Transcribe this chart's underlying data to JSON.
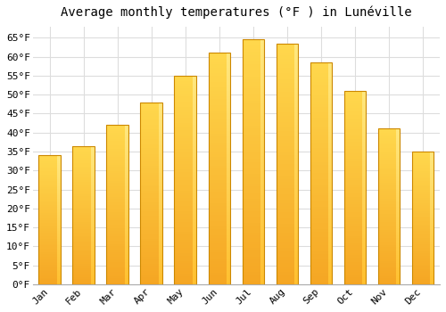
{
  "title": "Average monthly temperatures (°F ) in Lunéville",
  "months": [
    "Jan",
    "Feb",
    "Mar",
    "Apr",
    "May",
    "Jun",
    "Jul",
    "Aug",
    "Sep",
    "Oct",
    "Nov",
    "Dec"
  ],
  "values": [
    34,
    36.5,
    42,
    48,
    55,
    61,
    64.5,
    63.5,
    58.5,
    51,
    41,
    35
  ],
  "bar_color_bottom": "#F5A623",
  "bar_color_top": "#FFD84D",
  "bar_color_highlight": "#FFE066",
  "bar_edge_color": "#CC8800",
  "ylim": [
    0,
    68
  ],
  "ytick_step": 5,
  "background_color": "#ffffff",
  "grid_color": "#dddddd",
  "title_fontsize": 10,
  "tick_fontsize": 8,
  "font_family": "monospace"
}
